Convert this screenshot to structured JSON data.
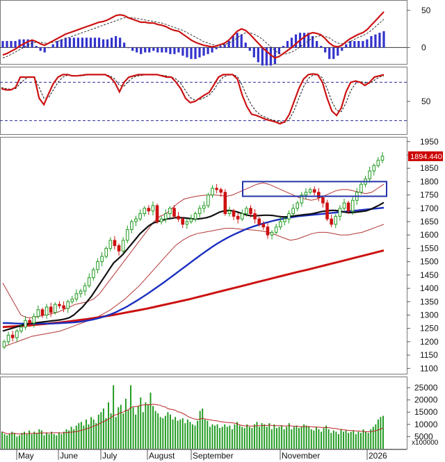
{
  "chart_data": [
    {
      "type": "line",
      "panel": "macd",
      "y_ticks": [
        "50",
        "0"
      ],
      "ylim": [
        -22,
        62
      ],
      "macd": [
        -10,
        -8,
        -5,
        -2,
        2,
        5,
        8,
        10,
        8,
        5,
        3,
        6,
        9,
        12,
        15,
        18,
        20,
        22,
        24,
        26,
        28,
        30,
        32,
        34,
        35,
        37,
        40,
        43,
        44,
        43,
        40,
        38,
        36,
        34,
        34,
        33,
        33,
        31,
        30,
        28,
        25,
        23,
        22,
        18,
        14,
        10,
        7,
        5,
        3,
        2,
        1,
        2,
        4,
        6,
        10,
        16,
        22,
        25,
        23,
        18,
        12,
        6,
        0,
        -5,
        -10,
        -14,
        -12,
        -8,
        -4,
        0,
        5,
        10,
        14,
        18,
        20,
        19,
        17,
        12,
        6,
        2,
        1,
        3,
        8,
        12,
        15,
        18,
        20,
        24,
        30,
        36,
        42,
        48
      ],
      "signal": [
        -14,
        -12,
        -9,
        -6,
        -3,
        0,
        3,
        6,
        7,
        7,
        6,
        6,
        7,
        8,
        10,
        12,
        14,
        16,
        18,
        20,
        22,
        24,
        26,
        28,
        30,
        32,
        34,
        36,
        38,
        40,
        40,
        40,
        39,
        38,
        37,
        36,
        35,
        34,
        33,
        31,
        29,
        27,
        25,
        23,
        20,
        17,
        14,
        11,
        8,
        6,
        4,
        3,
        3,
        4,
        6,
        9,
        13,
        17,
        20,
        20,
        18,
        15,
        11,
        6,
        1,
        -4,
        -8,
        -9,
        -8,
        -6,
        -3,
        1,
        5,
        9,
        13,
        15,
        16,
        15,
        13,
        9,
        6,
        5,
        6,
        8,
        11,
        14,
        16,
        19,
        23,
        28,
        33,
        38
      ],
      "histogram_color_positive": "#3333cc",
      "macd_color": "#cc1111"
    },
    {
      "type": "line",
      "panel": "stochastic",
      "y_ticks": [
        "50"
      ],
      "ylim": [
        0,
        100
      ],
      "reference_levels": [
        80,
        20
      ],
      "k": [
        70,
        68,
        68,
        72,
        88,
        88,
        88,
        88,
        55,
        45,
        62,
        78,
        88,
        92,
        92,
        90,
        90,
        91,
        92,
        92,
        92,
        92,
        92,
        88,
        80,
        65,
        80,
        88,
        90,
        92,
        92,
        92,
        92,
        92,
        90,
        88,
        88,
        80,
        70,
        55,
        48,
        50,
        55,
        60,
        64,
        76,
        88,
        92,
        92,
        92,
        85,
        60,
        42,
        30,
        28,
        25,
        22,
        20,
        18,
        15,
        18,
        30,
        50,
        70,
        85,
        92,
        93,
        92,
        80,
        55,
        35,
        28,
        40,
        65,
        80,
        82,
        80,
        75,
        80,
        88,
        90,
        92
      ],
      "d": [
        72,
        70,
        69,
        70,
        78,
        85,
        88,
        88,
        72,
        55,
        56,
        68,
        80,
        88,
        91,
        91,
        90,
        90,
        91,
        92,
        92,
        92,
        92,
        90,
        85,
        75,
        74,
        82,
        88,
        90,
        91,
        92,
        92,
        92,
        91,
        90,
        88,
        85,
        78,
        67,
        56,
        52,
        53,
        56,
        60,
        68,
        80,
        88,
        91,
        92,
        89,
        75,
        58,
        44,
        34,
        28,
        25,
        22,
        20,
        18,
        17,
        22,
        36,
        55,
        73,
        86,
        91,
        92,
        87,
        70,
        50,
        36,
        34,
        48,
        67,
        78,
        81,
        79,
        78,
        83,
        88,
        90
      ],
      "k_color": "#cc1111",
      "d_color": "#111111",
      "reference_color": "#2a2a99"
    },
    {
      "type": "candlestick",
      "panel": "price",
      "y_ticks": [
        "1950",
        "1900",
        "1850",
        "1800",
        "1750",
        "1700",
        "1650",
        "1600",
        "1550",
        "1500",
        "1450",
        "1400",
        "1350",
        "1300",
        "1250",
        "1200",
        "1150",
        "1100"
      ],
      "ylim": [
        1080,
        1965
      ],
      "last_price_label": "1894.440",
      "last_price_color": "#cc0000",
      "close": [
        1200,
        1225,
        1215,
        1240,
        1255,
        1280,
        1270,
        1295,
        1320,
        1300,
        1330,
        1310,
        1340,
        1335,
        1325,
        1350,
        1360,
        1380,
        1390,
        1410,
        1440,
        1470,
        1500,
        1520,
        1550,
        1580,
        1560,
        1540,
        1580,
        1620,
        1650,
        1660,
        1680,
        1700,
        1690,
        1710,
        1650,
        1660,
        1680,
        1700,
        1670,
        1660,
        1640,
        1650,
        1660,
        1680,
        1700,
        1710,
        1750,
        1775,
        1770,
        1760,
        1680,
        1690,
        1670,
        1660,
        1680,
        1700,
        1680,
        1660,
        1640,
        1630,
        1600,
        1610,
        1630,
        1650,
        1660,
        1680,
        1700,
        1720,
        1750,
        1760,
        1770,
        1760,
        1740,
        1720,
        1660,
        1640,
        1670,
        1700,
        1720,
        1690,
        1730,
        1760,
        1790,
        1810,
        1840,
        1860,
        1880,
        1895
      ],
      "sma_short": [
        1240,
        1245,
        1250,
        1255,
        1260,
        1265,
        1268,
        1270,
        1272,
        1274,
        1276,
        1278,
        1280,
        1282,
        1285,
        1290,
        1300,
        1315,
        1330,
        1350,
        1370,
        1395,
        1420,
        1445,
        1470,
        1495,
        1510,
        1525,
        1545,
        1565,
        1585,
        1605,
        1620,
        1635,
        1645,
        1650,
        1655,
        1660,
        1662,
        1665,
        1665,
        1664,
        1662,
        1660,
        1660,
        1662,
        1665,
        1670,
        1678,
        1686,
        1690,
        1692,
        1690,
        1686,
        1680,
        1675,
        1672,
        1672,
        1673,
        1674,
        1674,
        1673,
        1670,
        1668,
        1668,
        1670,
        1672,
        1674,
        1676,
        1678,
        1680,
        1684,
        1688,
        1690,
        1692,
        1692,
        1690,
        1686,
        1684,
        1684,
        1686,
        1688,
        1690,
        1696,
        1704,
        1712,
        1722
      ],
      "sma_mid": [
        1270,
        1270,
        1269,
        1268,
        1268,
        1268,
        1268,
        1268,
        1268,
        1268,
        1269,
        1270,
        1271,
        1272,
        1274,
        1277,
        1280,
        1284,
        1289,
        1295,
        1302,
        1310,
        1320,
        1330,
        1342,
        1354,
        1367,
        1380,
        1394,
        1408,
        1422,
        1437,
        1452,
        1467,
        1482,
        1497,
        1512,
        1527,
        1541,
        1555,
        1568,
        1580,
        1591,
        1601,
        1610,
        1619,
        1627,
        1634,
        1640,
        1646,
        1651,
        1656,
        1660,
        1664,
        1667,
        1670,
        1672,
        1674,
        1676,
        1678,
        1680,
        1682,
        1684,
        1686,
        1688,
        1690,
        1692,
        1694,
        1696,
        1698,
        1700,
        1702
      ],
      "sma_long": [
        1255,
        1257,
        1259,
        1261,
        1264,
        1267,
        1270,
        1273,
        1277,
        1281,
        1285,
        1290,
        1295,
        1300,
        1306,
        1312,
        1318,
        1324,
        1331,
        1338,
        1345,
        1352,
        1359,
        1367,
        1375,
        1383,
        1391,
        1399,
        1407,
        1415,
        1423,
        1431,
        1439,
        1447,
        1455,
        1463,
        1470,
        1478,
        1486,
        1494,
        1502,
        1510,
        1518,
        1526,
        1534,
        1542
      ],
      "bb_upper": [
        1420,
        1380,
        1340,
        1300,
        1290,
        1290,
        1295,
        1300,
        1305,
        1310,
        1320,
        1330,
        1340,
        1345,
        1350,
        1360,
        1380,
        1410,
        1440,
        1470,
        1500,
        1530,
        1560,
        1590,
        1620,
        1650,
        1670,
        1680,
        1700,
        1720,
        1735,
        1740,
        1745,
        1748,
        1750,
        1750,
        1748,
        1745,
        1750,
        1760,
        1770,
        1780,
        1790,
        1795,
        1790,
        1780,
        1770,
        1760,
        1750,
        1740,
        1735,
        1730,
        1735,
        1745,
        1755,
        1765,
        1770,
        1770,
        1765,
        1760,
        1755,
        1760,
        1775,
        1790
      ],
      "bb_lower": [
        1180,
        1190,
        1200,
        1210,
        1220,
        1225,
        1230,
        1235,
        1240,
        1250,
        1260,
        1270,
        1280,
        1290,
        1305,
        1320,
        1340,
        1360,
        1385,
        1410,
        1440,
        1470,
        1500,
        1530,
        1560,
        1580,
        1595,
        1605,
        1610,
        1615,
        1620,
        1625,
        1625,
        1622,
        1620,
        1618,
        1615,
        1610,
        1600,
        1590,
        1580,
        1585,
        1595,
        1605,
        1610,
        1610,
        1605,
        1600,
        1600,
        1605,
        1610,
        1620,
        1630,
        1640
      ],
      "ma_colors": {
        "short": "#111111",
        "mid": "#1a2fbf",
        "long": "#cc1111",
        "bands": "#b33333"
      },
      "box_color": "#2233aa",
      "box_range": [
        1745,
        1800
      ]
    },
    {
      "type": "bar",
      "panel": "volume",
      "y_ticks": [
        "25000",
        "20000",
        "15000",
        "10000",
        "5000"
      ],
      "unit_label": "x100000",
      "ylim": [
        0,
        29000
      ],
      "values": [
        7000,
        6000,
        5500,
        6000,
        7000,
        6500,
        5000,
        5500,
        6500,
        7000,
        6000,
        7500,
        6000,
        7000,
        6500,
        8000,
        7500,
        5500,
        6500,
        6000,
        7000,
        6000,
        5500,
        6500,
        6000,
        7000,
        8000,
        7500,
        9000,
        8000,
        9500,
        10500,
        11000,
        9500,
        12000,
        10000,
        13000,
        12000,
        10500,
        14000,
        15000,
        16500,
        12500,
        19000,
        14500,
        26000,
        13000,
        17000,
        18000,
        14500,
        20500,
        16000,
        26000,
        17000,
        14000,
        17500,
        21000,
        15000,
        19000,
        18000,
        23000,
        17500,
        15500,
        14500,
        13000,
        12500,
        13500,
        15000,
        14000,
        12000,
        13000,
        11500,
        12000,
        12500,
        10500,
        12000,
        11000,
        10000,
        9500,
        11500,
        15500,
        16500,
        12000,
        11500,
        9000,
        10000,
        9500,
        10000,
        8500,
        9000,
        10000,
        9000,
        9500,
        8000,
        10000,
        11000,
        9500,
        9000,
        8500,
        10000,
        9000,
        8500,
        10000,
        11000,
        9000,
        10500,
        10000,
        9000,
        10500,
        8000,
        10000,
        8500,
        9000,
        9500,
        8000,
        9000,
        10500,
        8000,
        9000,
        9500,
        8500,
        9000,
        10000,
        9500,
        9000,
        8000,
        7500,
        9000,
        8000,
        7000,
        8500,
        9500,
        8000,
        6500,
        7500,
        7000,
        6000,
        8000,
        7000,
        7500,
        6500,
        7000,
        7500,
        6000,
        7000,
        6500,
        8000,
        7000,
        6500,
        8000,
        9000,
        10000,
        12000,
        13000,
        13500
      ],
      "bar_color": "#1f9a1f",
      "avg_color": "#bb2222"
    }
  ],
  "x_axis_months": [
    "May",
    "June",
    "July",
    "August",
    "September",
    "November",
    "2026"
  ]
}
